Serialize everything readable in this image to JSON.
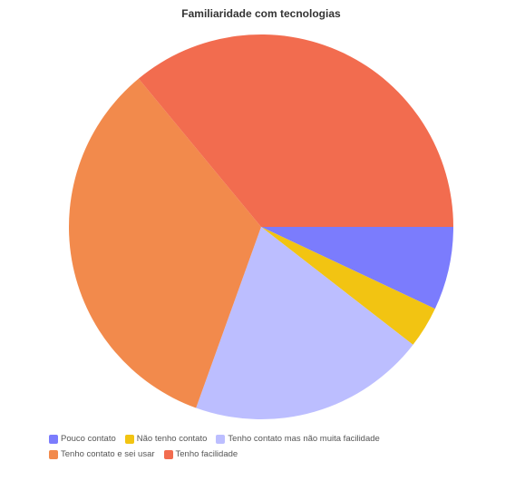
{
  "chart_data": {
    "type": "pie",
    "title": "Familiaridade com tecnologias",
    "legend_position": "bottom",
    "slices": [
      {
        "label": "Pouco contato",
        "value": 7,
        "color": "#7b7cfd"
      },
      {
        "label": "Não tenho contato",
        "value": 3.5,
        "color": "#f2c412"
      },
      {
        "label": "Tenho contato mas não muita facilidade",
        "value": 20,
        "color": "#bcbeff"
      },
      {
        "label": "Tenho contato e sei usar",
        "value": 33.5,
        "color": "#f28a4c"
      },
      {
        "label": "Tenho facilidade",
        "value": 36,
        "color": "#f26c4f"
      }
    ]
  }
}
